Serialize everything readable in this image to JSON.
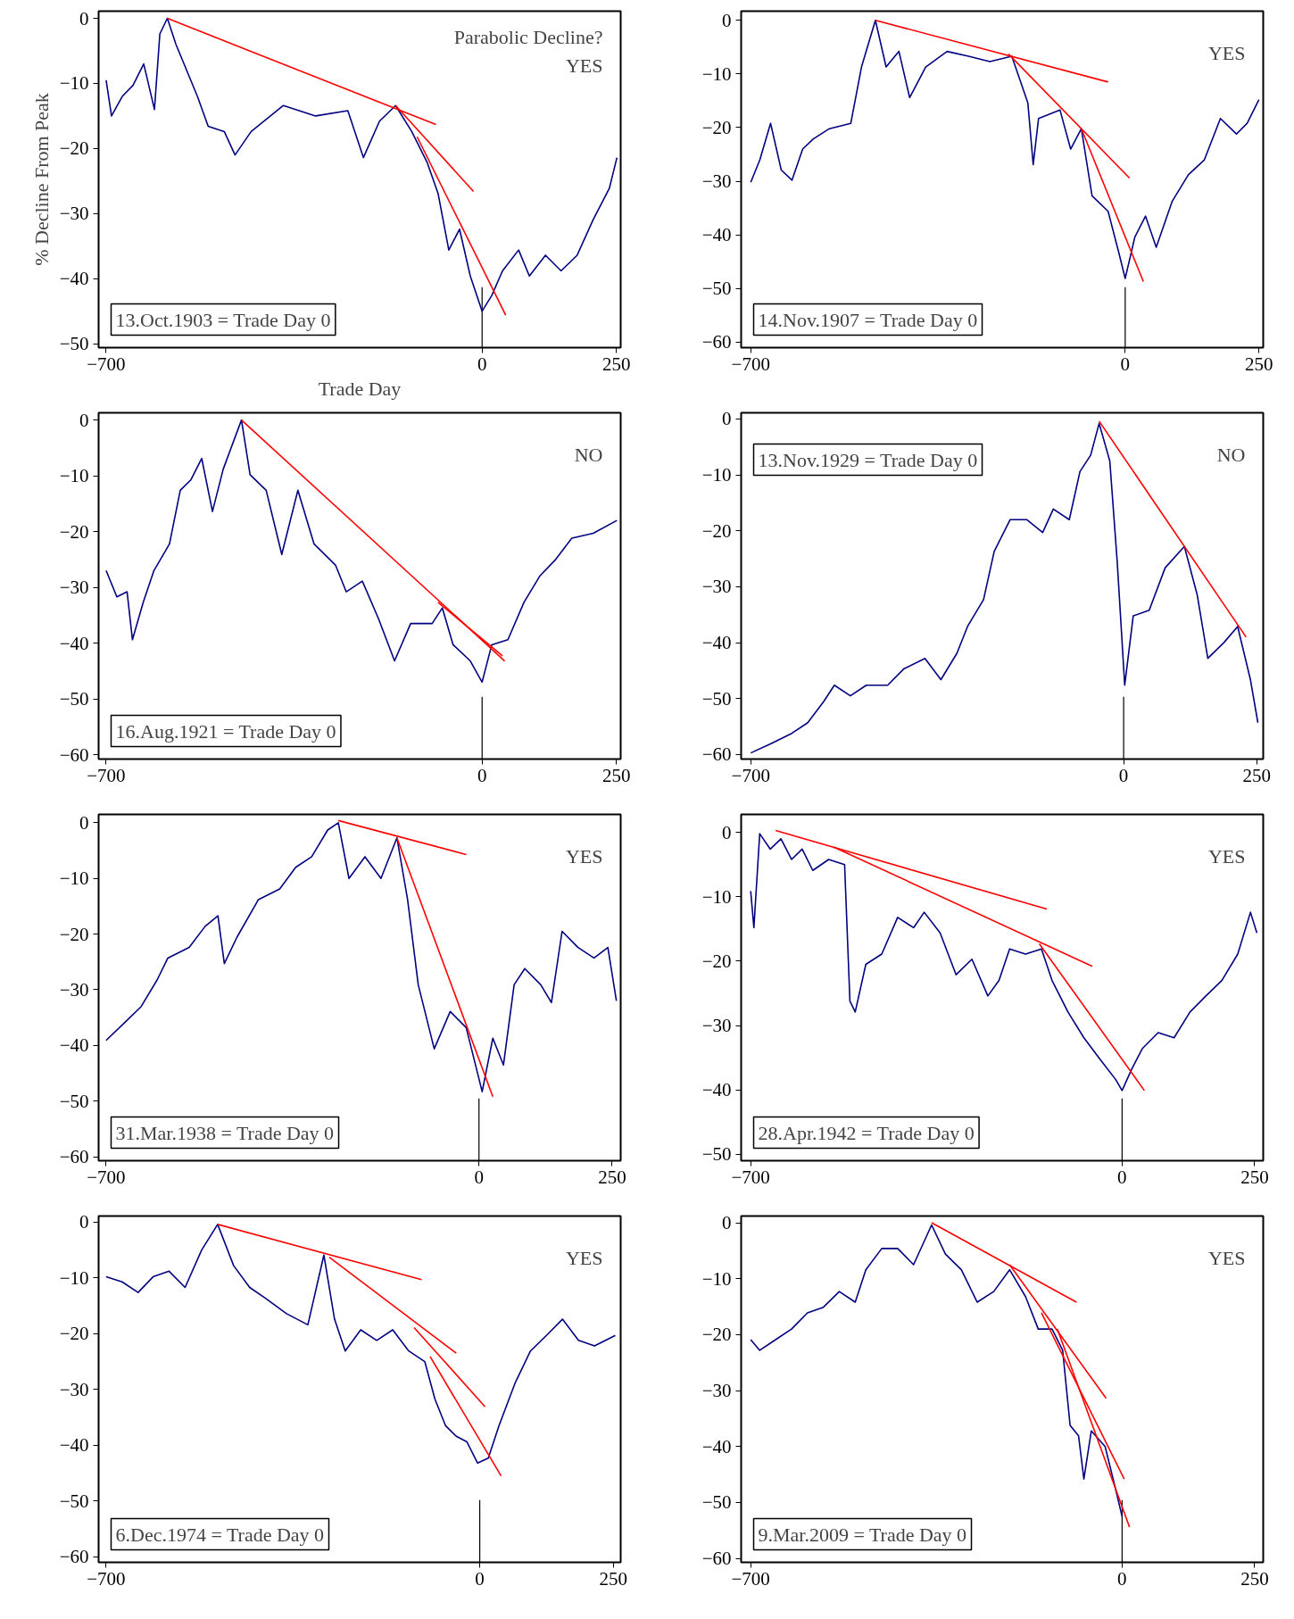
{
  "chart_data": [
    {
      "type": "line",
      "xlabel": "Trade Day",
      "ylabel": "% Decline From Peak",
      "xlim": [
        -714,
        258
      ],
      "ylim": [
        -50.6,
        1.1
      ],
      "xticks": [
        -700,
        0,
        250
      ],
      "yticks": [
        0,
        -10,
        -20,
        -30,
        -40,
        -50
      ],
      "grid": false,
      "annotations": [
        "13.Oct.1903 = Trade Day 0",
        "Parabolic Decline?",
        "YES"
      ],
      "ref_lines": [
        {
          "axis": "x",
          "value": 0,
          "color": "#000000"
        }
      ],
      "series": [
        {
          "color": "#000080",
          "x": [
            -700,
            -690,
            -670,
            -650,
            -630,
            -610,
            -600,
            -586,
            -570,
            -530,
            -510,
            -480,
            -460,
            -430,
            -370,
            -310,
            -250,
            -221,
            -191,
            -161,
            -131,
            -102,
            -82,
            -62,
            -42,
            -22,
            0,
            18,
            38,
            68,
            88,
            118,
            147,
            177,
            207,
            237,
            251
          ],
          "values": [
            -9.5,
            -15,
            -12,
            -10.3,
            -7,
            -14,
            -2.4,
            0,
            -4,
            -12,
            -16.6,
            -17.4,
            -21,
            -17.4,
            -13.4,
            -15,
            -14.2,
            -21.4,
            -15.8,
            -13.4,
            -17.4,
            -22.2,
            -26.9,
            -35.6,
            -32.4,
            -39.6,
            -45,
            -42.6,
            -38.8,
            -35.6,
            -39.6,
            -36.4,
            -38.8,
            -36.4,
            -30.9,
            -26.1,
            -21.4
          ]
        },
        {
          "color": "#ff0000",
          "x": [
            -586,
            -86
          ],
          "values": [
            0,
            -16.3
          ]
        },
        {
          "color": "#ff0000",
          "x": [
            -161,
            -16
          ],
          "values": [
            -13.4,
            -26.6
          ]
        },
        {
          "color": "#ff0000",
          "x": [
            -121,
            44
          ],
          "values": [
            -18.2,
            -45.6
          ]
        }
      ]
    },
    {
      "type": "line",
      "xlim": [
        -718,
        258
      ],
      "ylim": [
        -61,
        1.7
      ],
      "xticks": [
        -700,
        0,
        250
      ],
      "yticks": [
        0,
        -10,
        -20,
        -30,
        -40,
        -50,
        -60
      ],
      "grid": false,
      "annotations": [
        "14.Nov.1907 = Trade Day 0",
        "YES"
      ],
      "ref_lines": [
        {
          "axis": "x",
          "value": 0,
          "color": "#000000"
        }
      ],
      "series": [
        {
          "color": "#000080",
          "x": [
            -700,
            -683,
            -663,
            -643,
            -623,
            -603,
            -583,
            -553,
            -513,
            -493,
            -467,
            -447,
            -423,
            -403,
            -373,
            -333,
            -293,
            -253,
            -212,
            -182,
            -172,
            -162,
            -122,
            -102,
            -82,
            -62,
            -32,
            -12,
            0,
            18,
            38,
            58,
            88,
            118,
            148,
            178,
            208,
            228,
            250
          ],
          "values": [
            -30.2,
            -26,
            -19.2,
            -27.9,
            -29.8,
            -24,
            -22.1,
            -20.2,
            -19.2,
            -8.7,
            0,
            -8.7,
            -5.8,
            -14.4,
            -8.7,
            -5.8,
            -6.7,
            -7.7,
            -6.7,
            -15.4,
            -26.9,
            -18.3,
            -16.7,
            -24,
            -20.2,
            -32.7,
            -35.6,
            -43.3,
            -48.1,
            -40.4,
            -36.5,
            -42.3,
            -33.7,
            -28.8,
            -26,
            -18.3,
            -21.2,
            -19.2,
            -14.8
          ]
        },
        {
          "color": "#ff0000",
          "x": [
            -467,
            -32
          ],
          "values": [
            0,
            -11.5
          ]
        },
        {
          "color": "#ff0000",
          "x": [
            -218,
            8
          ],
          "values": [
            -6.3,
            -29.4
          ]
        },
        {
          "color": "#ff0000",
          "x": [
            -82,
            34
          ],
          "values": [
            -20.2,
            -48.7
          ]
        }
      ]
    },
    {
      "type": "line",
      "xlim": [
        -714,
        258
      ],
      "ylim": [
        -60.8,
        1.3
      ],
      "xticks": [
        -700,
        0,
        250
      ],
      "yticks": [
        0,
        -10,
        -20,
        -30,
        -40,
        -50,
        -60
      ],
      "grid": false,
      "annotations": [
        "16.Aug.1921 = Trade Day 0",
        "NO"
      ],
      "ref_lines": [
        {
          "axis": "x",
          "value": 0,
          "color": "#000000"
        }
      ],
      "series": [
        {
          "color": "#000080",
          "x": [
            -700,
            -680,
            -661,
            -651,
            -631,
            -611,
            -582,
            -562,
            -542,
            -522,
            -502,
            -482,
            -448,
            -432,
            -402,
            -373,
            -343,
            -313,
            -273,
            -253,
            -223,
            -193,
            -163,
            -133,
            -93,
            -74,
            -54,
            -22,
            0,
            18,
            48,
            78,
            108,
            137,
            167,
            207,
            251
          ],
          "values": [
            -27,
            -31.7,
            -30.8,
            -39.4,
            -32.7,
            -27,
            -22.2,
            -12.6,
            -10.7,
            -6.9,
            -16.4,
            -8.8,
            0,
            -9.8,
            -12.6,
            -24.1,
            -12.6,
            -22.2,
            -26,
            -30.8,
            -28.9,
            -35.6,
            -43.2,
            -36.5,
            -36.5,
            -33.7,
            -40.3,
            -43.2,
            -47,
            -40.3,
            -39.4,
            -32.7,
            -27.9,
            -25,
            -21.2,
            -20.3,
            -18
          ]
        },
        {
          "color": "#ff0000",
          "x": [
            -448,
            42
          ],
          "values": [
            0,
            -43.2
          ]
        },
        {
          "color": "#ff0000",
          "x": [
            -82,
            38
          ],
          "values": [
            -32.7,
            -42.3
          ]
        }
      ]
    },
    {
      "type": "line",
      "xlim": [
        -718,
        262
      ],
      "ylim": [
        -60.8,
        1.1
      ],
      "xticks": [
        -700,
        0,
        250
      ],
      "yticks": [
        0,
        -10,
        -20,
        -30,
        -40,
        -50,
        -60
      ],
      "grid": false,
      "annotations": [
        "13.Nov.1929 = Trade Day 0",
        "NO"
      ],
      "ref_lines": [
        {
          "axis": "x",
          "value": 0,
          "color": "#000000"
        }
      ],
      "series": [
        {
          "color": "#000080",
          "x": [
            -700,
            -663,
            -623,
            -593,
            -563,
            -543,
            -513,
            -483,
            -443,
            -413,
            -373,
            -343,
            -313,
            -293,
            -263,
            -243,
            -213,
            -182,
            -152,
            -132,
            -102,
            -82,
            -62,
            -46,
            -26,
            -12,
            2,
            18,
            48,
            78,
            114,
            138,
            158,
            188,
            214,
            238,
            252
          ],
          "values": [
            -59.7,
            -58.1,
            -56.2,
            -54.3,
            -50.5,
            -47.6,
            -49.5,
            -47.6,
            -47.6,
            -44.7,
            -42.8,
            -46.6,
            -41.9,
            -37.1,
            -32.3,
            -23.7,
            -18,
            -18,
            -20.3,
            -16.1,
            -18,
            -9.4,
            -6.5,
            -0.8,
            -7.5,
            -25.6,
            -47.6,
            -35.2,
            -34.2,
            -26.6,
            -22.8,
            -31.4,
            -42.8,
            -40,
            -37.1,
            -46.6,
            -54.3
          ]
        },
        {
          "color": "#ff0000",
          "x": [
            -46,
            230
          ],
          "values": [
            -0.4,
            -39
          ]
        }
      ]
    },
    {
      "type": "line",
      "xlim": [
        -714,
        266
      ],
      "ylim": [
        -60.7,
        1.5
      ],
      "xticks": [
        -700,
        0,
        250
      ],
      "yticks": [
        0,
        -10,
        -20,
        -30,
        -40,
        -50,
        -60
      ],
      "grid": false,
      "annotations": [
        "31.Mar.1938 = Trade Day 0",
        "YES"
      ],
      "ref_lines": [
        {
          "axis": "x",
          "value": 0,
          "color": "#000000"
        }
      ],
      "series": [
        {
          "color": "#000080",
          "x": [
            -700,
            -664,
            -634,
            -604,
            -584,
            -544,
            -514,
            -490,
            -478,
            -454,
            -414,
            -374,
            -344,
            -314,
            -284,
            -264,
            -244,
            -214,
            -184,
            -154,
            -134,
            -114,
            -84,
            -54,
            -24,
            6,
            26,
            46,
            66,
            86,
            116,
            136,
            156,
            186,
            216,
            242,
            258
          ],
          "values": [
            -39.1,
            -35.8,
            -33,
            -28.2,
            -24.3,
            -22.4,
            -18.6,
            -16.7,
            -25.3,
            -20.5,
            -13.8,
            -11.9,
            -8,
            -6.1,
            -1.3,
            0,
            -10,
            -6.1,
            -10,
            -2.7,
            -13.8,
            -29.1,
            -40.6,
            -33.9,
            -36.8,
            -48.3,
            -38.7,
            -43.5,
            -29.1,
            -26.2,
            -29.1,
            -32.3,
            -19.5,
            -22.4,
            -24.3,
            -22.4,
            -32
          ]
        },
        {
          "color": "#ff0000",
          "x": [
            -264,
            -24
          ],
          "values": [
            0.4,
            -5.7
          ]
        },
        {
          "color": "#ff0000",
          "x": [
            -154,
            26
          ],
          "values": [
            -2.7,
            -49.2
          ]
        }
      ]
    },
    {
      "type": "line",
      "xlim": [
        -718,
        266
      ],
      "ylim": [
        -51,
        2.8
      ],
      "xticks": [
        -700,
        0,
        250
      ],
      "yticks": [
        0,
        -10,
        -20,
        -30,
        -40,
        -50
      ],
      "grid": false,
      "annotations": [
        "28.Apr.1942 = Trade Day 0",
        "YES"
      ],
      "ref_lines": [
        {
          "axis": "x",
          "value": 0,
          "color": "#000000"
        }
      ],
      "series": [
        {
          "color": "#000080",
          "x": [
            -700,
            -694,
            -683,
            -663,
            -643,
            -623,
            -603,
            -583,
            -553,
            -523,
            -513,
            -503,
            -483,
            -453,
            -423,
            -393,
            -373,
            -343,
            -313,
            -283,
            -253,
            -232,
            -212,
            -182,
            -152,
            -132,
            -102,
            -72,
            -42,
            -12,
            0,
            18,
            38,
            68,
            98,
            128,
            158,
            188,
            218,
            242,
            254
          ],
          "values": [
            -9.1,
            -14.8,
            -0.2,
            -2.6,
            -1,
            -4.2,
            -2.6,
            -5.9,
            -4.2,
            -5,
            -26.2,
            -27.9,
            -20.5,
            -18.9,
            -13.2,
            -14.8,
            -12.4,
            -15.6,
            -22.1,
            -19.7,
            -25.4,
            -23,
            -18.1,
            -18.9,
            -18.1,
            -23,
            -27.9,
            -31.9,
            -35.2,
            -38.4,
            -40.1,
            -36.8,
            -33.6,
            -31.1,
            -31.9,
            -27.9,
            -25.4,
            -23,
            -18.9,
            -12.4,
            -15.6
          ]
        },
        {
          "color": "#ff0000",
          "x": [
            -653,
            -142
          ],
          "values": [
            0.3,
            -11.9
          ]
        },
        {
          "color": "#ff0000",
          "x": [
            -543,
            -56
          ],
          "values": [
            -2.3,
            -20.8
          ]
        },
        {
          "color": "#ff0000",
          "x": [
            -156,
            42
          ],
          "values": [
            -17.3,
            -40.1
          ]
        }
      ]
    },
    {
      "type": "line",
      "xlim": [
        -714,
        264
      ],
      "ylim": [
        -61,
        1.1
      ],
      "xticks": [
        -700,
        0,
        250
      ],
      "yticks": [
        0,
        -10,
        -20,
        -30,
        -40,
        -50,
        -60
      ],
      "grid": false,
      "annotations": [
        "6.Dec.1974 = Trade Day 0",
        "YES"
      ],
      "ref_lines": [
        {
          "axis": "x",
          "value": 0,
          "color": "#000000"
        }
      ],
      "series": [
        {
          "color": "#000080",
          "x": [
            -700,
            -670,
            -640,
            -612,
            -582,
            -552,
            -521,
            -491,
            -461,
            -431,
            -402,
            -362,
            -322,
            -292,
            -272,
            -252,
            -223,
            -193,
            -163,
            -133,
            -103,
            -84,
            -64,
            -44,
            -24,
            -4,
            16,
            36,
            66,
            95,
            125,
            155,
            185,
            215,
            254
          ],
          "values": [
            -9.8,
            -10.7,
            -12.6,
            -9.8,
            -8.8,
            -11.7,
            -5,
            -0.4,
            -7.8,
            -11.7,
            -13.6,
            -16.4,
            -18.4,
            -5.9,
            -17.4,
            -23.1,
            -19.3,
            -21.2,
            -19.3,
            -23.1,
            -25,
            -31.7,
            -36.5,
            -38.4,
            -39.4,
            -43.2,
            -42.3,
            -36.5,
            -28.9,
            -23.1,
            -20.3,
            -17.4,
            -21.2,
            -22.2,
            -20.3
          ]
        },
        {
          "color": "#ff0000",
          "x": [
            -491,
            -109
          ],
          "values": [
            -0.4,
            -10.3
          ]
        },
        {
          "color": "#ff0000",
          "x": [
            -282,
            -44
          ],
          "values": [
            -6.3,
            -23.5
          ]
        },
        {
          "color": "#ff0000",
          "x": [
            -123,
            10
          ],
          "values": [
            -18.9,
            -33.1
          ]
        },
        {
          "color": "#ff0000",
          "x": [
            -93,
            40
          ],
          "values": [
            -24.1,
            -45.5
          ]
        }
      ]
    },
    {
      "type": "line",
      "xlim": [
        -718,
        266
      ],
      "ylim": [
        -60.7,
        1.2
      ],
      "xticks": [
        -700,
        0,
        250
      ],
      "yticks": [
        0,
        -10,
        -20,
        -30,
        -40,
        -50,
        -60
      ],
      "grid": false,
      "annotations": [
        "9.Mar.2009 = Trade Day 0",
        "YES"
      ],
      "ref_lines": [
        {
          "axis": "x",
          "value": 0,
          "color": "#000000"
        }
      ],
      "series": [
        {
          "color": "#000080",
          "x": [
            -700,
            -683,
            -653,
            -623,
            -593,
            -563,
            -533,
            -503,
            -483,
            -453,
            -423,
            -393,
            -359,
            -333,
            -303,
            -273,
            -242,
            -212,
            -182,
            -158,
            -132,
            -112,
            -98,
            -82,
            -72,
            -58,
            -32,
            -12,
            0
          ],
          "values": [
            -20.9,
            -22.8,
            -20.9,
            -19,
            -16.1,
            -15.1,
            -12.3,
            -14.2,
            -8.4,
            -4.6,
            -4.6,
            -7.5,
            -0.4,
            -5.6,
            -8.4,
            -14.2,
            -12.3,
            -8.4,
            -13.2,
            -19,
            -19,
            -22.8,
            -36.2,
            -38.1,
            -45.8,
            -37.2,
            -40,
            -47.7,
            -52.5
          ]
        },
        {
          "color": "#ff0000",
          "x": [
            -359,
            -86
          ],
          "values": [
            0,
            -14.2
          ]
        },
        {
          "color": "#ff0000",
          "x": [
            -212,
            -30
          ],
          "values": [
            -7.5,
            -31.4
          ]
        },
        {
          "color": "#ff0000",
          "x": [
            -152,
            4
          ],
          "values": [
            -16.1,
            -45.8
          ]
        },
        {
          "color": "#ff0000",
          "x": [
            -122,
            14
          ],
          "values": [
            -19,
            -54.4
          ]
        }
      ]
    }
  ]
}
